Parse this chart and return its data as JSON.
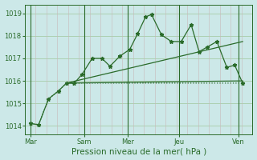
{
  "bg_color": "#cce8e8",
  "grid_color_h": "#a8cca8",
  "grid_color_v": "#c8d8c8",
  "line_color": "#2a6b2a",
  "ylabel_vals": [
    1014,
    1015,
    1016,
    1017,
    1018,
    1019
  ],
  "ylim": [
    1013.6,
    1019.4
  ],
  "xlim": [
    0,
    11.5
  ],
  "xtick_labels": [
    "Mar",
    "Sam",
    "Mer",
    "Jeu",
    "Ven"
  ],
  "xtick_positions": [
    0.3,
    3.0,
    5.2,
    7.8,
    10.8
  ],
  "xlabel": "Pression niveau de la mer( hPa )",
  "main_x": [
    0.3,
    0.7,
    1.2,
    1.7,
    2.1,
    2.5,
    2.9,
    3.4,
    3.9,
    4.3,
    4.8,
    5.3,
    5.7,
    6.1,
    6.4,
    6.9,
    7.4,
    7.9,
    8.4,
    8.8,
    9.2,
    9.7,
    10.2,
    10.6,
    11.0
  ],
  "main_y": [
    1014.1,
    1014.05,
    1015.2,
    1015.55,
    1015.9,
    1015.9,
    1016.3,
    1017.0,
    1017.0,
    1016.65,
    1017.1,
    1017.4,
    1018.1,
    1018.85,
    1018.95,
    1018.05,
    1017.75,
    1017.75,
    1018.5,
    1017.3,
    1017.5,
    1017.75,
    1016.6,
    1016.7,
    1015.9
  ],
  "dotted_x": [
    0.3,
    0.7,
    1.2,
    1.7,
    2.1,
    2.5,
    11.0
  ],
  "dotted_y": [
    1014.1,
    1014.05,
    1015.2,
    1015.55,
    1015.9,
    1015.9,
    1015.9
  ],
  "trend1_x": [
    2.1,
    11.0
  ],
  "trend1_y": [
    1015.9,
    1016.0
  ],
  "trend2_x": [
    2.1,
    11.0
  ],
  "trend2_y": [
    1015.9,
    1017.75
  ],
  "vline_major": [
    0.3,
    3.0,
    5.2,
    7.8,
    10.8
  ],
  "vline_minor_count": 22,
  "marker": "*",
  "markersize": 3.5,
  "linewidth": 0.9,
  "fontsize_tick": 6,
  "fontsize_xlabel": 7.5
}
